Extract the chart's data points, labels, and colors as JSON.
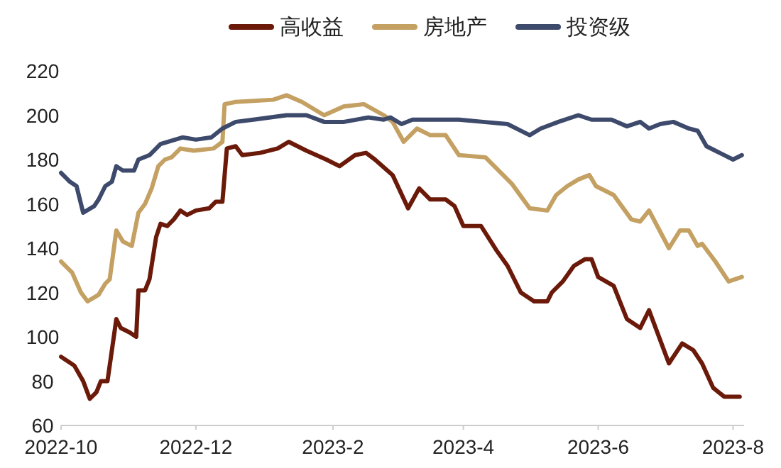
{
  "chart_data": {
    "type": "line",
    "legend": "top",
    "grid": false,
    "line_style": "solid",
    "marker": "none",
    "xlim": [
      "2022-10-01",
      "2023-08-06"
    ],
    "xticks": [
      {
        "value": "2022-10-01",
        "label": "2022-10"
      },
      {
        "value": "2022-12-01",
        "label": "2022-12"
      },
      {
        "value": "2023-02-01",
        "label": "2023-2"
      },
      {
        "value": "2023-04-01",
        "label": "2023-4"
      },
      {
        "value": "2023-06-01",
        "label": "2023-6"
      },
      {
        "value": "2023-08-01",
        "label": "2023-8"
      }
    ],
    "ylim": [
      60,
      220
    ],
    "yticks": [
      60,
      80,
      100,
      120,
      140,
      160,
      180,
      200,
      220
    ],
    "series": [
      {
        "name": "高收益",
        "color": "#6b1a0a",
        "x": [
          "2022-10-01",
          "2022-10-07",
          "2022-10-11",
          "2022-10-14",
          "2022-10-17",
          "2022-10-19",
          "2022-10-22",
          "2022-10-26",
          "2022-10-28",
          "2022-11-01",
          "2022-11-04",
          "2022-11-05",
          "2022-11-08",
          "2022-11-10",
          "2022-11-13",
          "2022-11-15",
          "2022-11-18",
          "2022-11-21",
          "2022-11-24",
          "2022-11-27",
          "2022-12-01",
          "2022-12-07",
          "2022-12-10",
          "2022-12-13",
          "2022-12-15",
          "2022-12-19",
          "2022-12-22",
          "2022-12-30",
          "2023-01-07",
          "2023-01-12",
          "2023-01-20",
          "2023-01-29",
          "2023-02-04",
          "2023-02-11",
          "2023-02-16",
          "2023-02-20",
          "2023-02-28",
          "2023-03-07",
          "2023-03-12",
          "2023-03-17",
          "2023-03-24",
          "2023-03-28",
          "2023-04-01",
          "2023-04-09",
          "2023-04-16",
          "2023-04-21",
          "2023-04-27",
          "2023-05-03",
          "2023-05-09",
          "2023-05-11",
          "2023-05-16",
          "2023-05-21",
          "2023-05-26",
          "2023-05-29",
          "2023-06-01",
          "2023-06-08",
          "2023-06-14",
          "2023-06-20",
          "2023-06-24",
          "2023-07-03",
          "2023-07-09",
          "2023-07-14",
          "2023-07-18",
          "2023-07-23",
          "2023-07-28",
          "2023-08-04"
        ],
        "values": [
          91,
          87,
          80,
          72,
          75,
          80,
          80,
          108,
          104,
          102,
          100,
          121,
          121,
          126,
          145,
          151,
          150,
          153,
          157,
          155,
          157,
          158,
          161,
          161,
          185,
          186,
          182,
          183,
          185,
          188,
          184,
          180,
          177,
          182,
          183,
          180,
          173,
          158,
          167,
          162,
          162,
          159,
          150,
          150,
          139,
          132,
          120,
          116,
          116,
          120,
          125,
          132,
          135,
          135,
          127,
          123,
          108,
          104,
          112,
          88,
          97,
          94,
          88,
          77,
          73,
          73
        ]
      },
      {
        "name": "房地产",
        "color": "#c4a062",
        "x": [
          "2022-10-01",
          "2022-10-06",
          "2022-10-10",
          "2022-10-13",
          "2022-10-18",
          "2022-10-21",
          "2022-10-23",
          "2022-10-26",
          "2022-10-29",
          "2022-11-02",
          "2022-11-05",
          "2022-11-08",
          "2022-11-11",
          "2022-11-14",
          "2022-11-17",
          "2022-11-20",
          "2022-11-24",
          "2022-11-30",
          "2022-12-09",
          "2022-12-13",
          "2022-12-14",
          "2022-12-19",
          "2023-01-05",
          "2023-01-11",
          "2023-01-18",
          "2023-01-28",
          "2023-02-06",
          "2023-02-15",
          "2023-02-24",
          "2023-02-28",
          "2023-03-05",
          "2023-03-11",
          "2023-03-17",
          "2023-03-24",
          "2023-03-30",
          "2023-04-11",
          "2023-04-17",
          "2023-04-23",
          "2023-05-01",
          "2023-05-09",
          "2023-05-13",
          "2023-05-18",
          "2023-05-23",
          "2023-05-28",
          "2023-05-31",
          "2023-06-08",
          "2023-06-16",
          "2023-06-20",
          "2023-06-24",
          "2023-07-03",
          "2023-07-08",
          "2023-07-12",
          "2023-07-16",
          "2023-07-18",
          "2023-07-24",
          "2023-07-30",
          "2023-08-05"
        ],
        "values": [
          134,
          129,
          120,
          116,
          119,
          124,
          126,
          148,
          143,
          141,
          156,
          160,
          167,
          177,
          180,
          181,
          185,
          184,
          185,
          188,
          205,
          206,
          207,
          209,
          206,
          200,
          204,
          205,
          200,
          197,
          188,
          194,
          191,
          191,
          182,
          181,
          175,
          169,
          158,
          157,
          164,
          168,
          171,
          173,
          168,
          164,
          153,
          152,
          157,
          140,
          148,
          148,
          141,
          142,
          134,
          125,
          127
        ]
      },
      {
        "name": "投资级",
        "color": "#3d4a6b",
        "x": [
          "2022-10-01",
          "2022-10-05",
          "2022-10-08",
          "2022-10-11",
          "2022-10-16",
          "2022-10-18",
          "2022-10-21",
          "2022-10-24",
          "2022-10-26",
          "2022-10-29",
          "2022-11-03",
          "2022-11-05",
          "2022-11-10",
          "2022-11-15",
          "2022-11-25",
          "2022-12-01",
          "2022-12-08",
          "2022-12-13",
          "2022-12-19",
          "2022-12-27",
          "2023-01-11",
          "2023-01-20",
          "2023-01-28",
          "2023-02-06",
          "2023-02-17",
          "2023-02-24",
          "2023-02-27",
          "2023-03-04",
          "2023-03-09",
          "2023-03-30",
          "2023-04-10",
          "2023-04-21",
          "2023-04-27",
          "2023-05-01",
          "2023-05-06",
          "2023-05-14",
          "2023-05-23",
          "2023-05-29",
          "2023-06-07",
          "2023-06-14",
          "2023-06-20",
          "2023-06-24",
          "2023-06-29",
          "2023-07-05",
          "2023-07-12",
          "2023-07-16",
          "2023-07-20",
          "2023-07-24",
          "2023-08-01",
          "2023-08-05"
        ],
        "values": [
          174,
          170,
          168,
          156,
          159,
          162,
          168,
          170,
          177,
          175,
          175,
          180,
          182,
          187,
          190,
          189,
          190,
          194,
          197,
          198,
          200,
          200,
          197,
          197,
          199,
          198,
          199,
          196,
          198,
          198,
          197,
          196,
          193,
          191,
          194,
          197,
          200,
          198,
          198,
          195,
          197,
          194,
          196,
          197,
          194,
          193,
          186,
          184,
          180,
          182
        ]
      }
    ]
  }
}
